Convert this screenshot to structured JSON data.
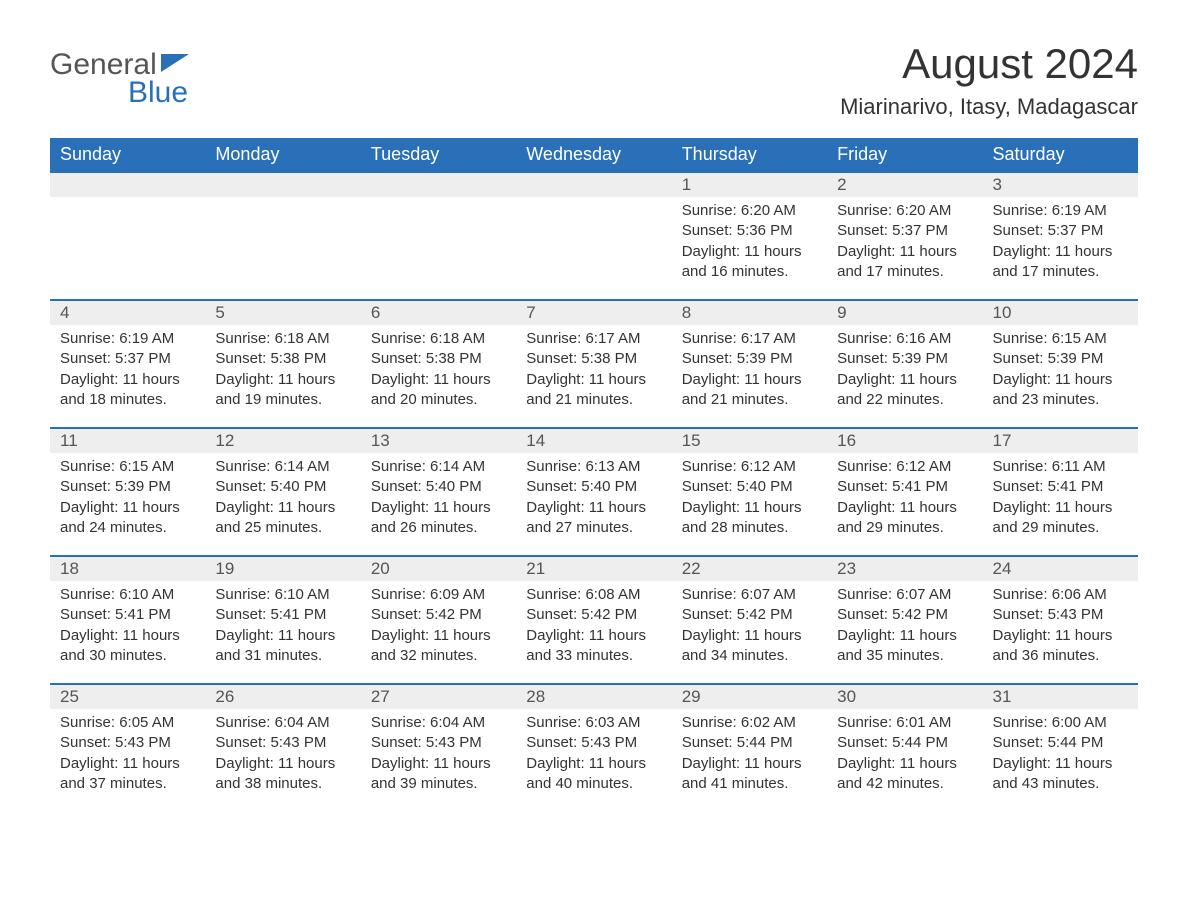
{
  "logo": {
    "text1": "General",
    "text2": "Blue"
  },
  "title": "August 2024",
  "location": "Miarinarivo, Itasy, Madagascar",
  "colors": {
    "header_bg": "#2970b8",
    "header_text": "#ffffff",
    "daynum_bg": "#eeeeee",
    "border": "#2970b8",
    "body_text": "#333333",
    "body_bg": "#ffffff"
  },
  "typography": {
    "title_fontsize": 42,
    "location_fontsize": 22,
    "dayheader_fontsize": 18,
    "daynum_fontsize": 17,
    "details_fontsize": 15,
    "font_family": "Arial"
  },
  "day_headers": [
    "Sunday",
    "Monday",
    "Tuesday",
    "Wednesday",
    "Thursday",
    "Friday",
    "Saturday"
  ],
  "weeks": [
    [
      {
        "empty": true
      },
      {
        "empty": true
      },
      {
        "empty": true
      },
      {
        "empty": true
      },
      {
        "day": "1",
        "sunrise": "Sunrise: 6:20 AM",
        "sunset": "Sunset: 5:36 PM",
        "daylight1": "Daylight: 11 hours",
        "daylight2": "and 16 minutes."
      },
      {
        "day": "2",
        "sunrise": "Sunrise: 6:20 AM",
        "sunset": "Sunset: 5:37 PM",
        "daylight1": "Daylight: 11 hours",
        "daylight2": "and 17 minutes."
      },
      {
        "day": "3",
        "sunrise": "Sunrise: 6:19 AM",
        "sunset": "Sunset: 5:37 PM",
        "daylight1": "Daylight: 11 hours",
        "daylight2": "and 17 minutes."
      }
    ],
    [
      {
        "day": "4",
        "sunrise": "Sunrise: 6:19 AM",
        "sunset": "Sunset: 5:37 PM",
        "daylight1": "Daylight: 11 hours",
        "daylight2": "and 18 minutes."
      },
      {
        "day": "5",
        "sunrise": "Sunrise: 6:18 AM",
        "sunset": "Sunset: 5:38 PM",
        "daylight1": "Daylight: 11 hours",
        "daylight2": "and 19 minutes."
      },
      {
        "day": "6",
        "sunrise": "Sunrise: 6:18 AM",
        "sunset": "Sunset: 5:38 PM",
        "daylight1": "Daylight: 11 hours",
        "daylight2": "and 20 minutes."
      },
      {
        "day": "7",
        "sunrise": "Sunrise: 6:17 AM",
        "sunset": "Sunset: 5:38 PM",
        "daylight1": "Daylight: 11 hours",
        "daylight2": "and 21 minutes."
      },
      {
        "day": "8",
        "sunrise": "Sunrise: 6:17 AM",
        "sunset": "Sunset: 5:39 PM",
        "daylight1": "Daylight: 11 hours",
        "daylight2": "and 21 minutes."
      },
      {
        "day": "9",
        "sunrise": "Sunrise: 6:16 AM",
        "sunset": "Sunset: 5:39 PM",
        "daylight1": "Daylight: 11 hours",
        "daylight2": "and 22 minutes."
      },
      {
        "day": "10",
        "sunrise": "Sunrise: 6:15 AM",
        "sunset": "Sunset: 5:39 PM",
        "daylight1": "Daylight: 11 hours",
        "daylight2": "and 23 minutes."
      }
    ],
    [
      {
        "day": "11",
        "sunrise": "Sunrise: 6:15 AM",
        "sunset": "Sunset: 5:39 PM",
        "daylight1": "Daylight: 11 hours",
        "daylight2": "and 24 minutes."
      },
      {
        "day": "12",
        "sunrise": "Sunrise: 6:14 AM",
        "sunset": "Sunset: 5:40 PM",
        "daylight1": "Daylight: 11 hours",
        "daylight2": "and 25 minutes."
      },
      {
        "day": "13",
        "sunrise": "Sunrise: 6:14 AM",
        "sunset": "Sunset: 5:40 PM",
        "daylight1": "Daylight: 11 hours",
        "daylight2": "and 26 minutes."
      },
      {
        "day": "14",
        "sunrise": "Sunrise: 6:13 AM",
        "sunset": "Sunset: 5:40 PM",
        "daylight1": "Daylight: 11 hours",
        "daylight2": "and 27 minutes."
      },
      {
        "day": "15",
        "sunrise": "Sunrise: 6:12 AM",
        "sunset": "Sunset: 5:40 PM",
        "daylight1": "Daylight: 11 hours",
        "daylight2": "and 28 minutes."
      },
      {
        "day": "16",
        "sunrise": "Sunrise: 6:12 AM",
        "sunset": "Sunset: 5:41 PM",
        "daylight1": "Daylight: 11 hours",
        "daylight2": "and 29 minutes."
      },
      {
        "day": "17",
        "sunrise": "Sunrise: 6:11 AM",
        "sunset": "Sunset: 5:41 PM",
        "daylight1": "Daylight: 11 hours",
        "daylight2": "and 29 minutes."
      }
    ],
    [
      {
        "day": "18",
        "sunrise": "Sunrise: 6:10 AM",
        "sunset": "Sunset: 5:41 PM",
        "daylight1": "Daylight: 11 hours",
        "daylight2": "and 30 minutes."
      },
      {
        "day": "19",
        "sunrise": "Sunrise: 6:10 AM",
        "sunset": "Sunset: 5:41 PM",
        "daylight1": "Daylight: 11 hours",
        "daylight2": "and 31 minutes."
      },
      {
        "day": "20",
        "sunrise": "Sunrise: 6:09 AM",
        "sunset": "Sunset: 5:42 PM",
        "daylight1": "Daylight: 11 hours",
        "daylight2": "and 32 minutes."
      },
      {
        "day": "21",
        "sunrise": "Sunrise: 6:08 AM",
        "sunset": "Sunset: 5:42 PM",
        "daylight1": "Daylight: 11 hours",
        "daylight2": "and 33 minutes."
      },
      {
        "day": "22",
        "sunrise": "Sunrise: 6:07 AM",
        "sunset": "Sunset: 5:42 PM",
        "daylight1": "Daylight: 11 hours",
        "daylight2": "and 34 minutes."
      },
      {
        "day": "23",
        "sunrise": "Sunrise: 6:07 AM",
        "sunset": "Sunset: 5:42 PM",
        "daylight1": "Daylight: 11 hours",
        "daylight2": "and 35 minutes."
      },
      {
        "day": "24",
        "sunrise": "Sunrise: 6:06 AM",
        "sunset": "Sunset: 5:43 PM",
        "daylight1": "Daylight: 11 hours",
        "daylight2": "and 36 minutes."
      }
    ],
    [
      {
        "day": "25",
        "sunrise": "Sunrise: 6:05 AM",
        "sunset": "Sunset: 5:43 PM",
        "daylight1": "Daylight: 11 hours",
        "daylight2": "and 37 minutes."
      },
      {
        "day": "26",
        "sunrise": "Sunrise: 6:04 AM",
        "sunset": "Sunset: 5:43 PM",
        "daylight1": "Daylight: 11 hours",
        "daylight2": "and 38 minutes."
      },
      {
        "day": "27",
        "sunrise": "Sunrise: 6:04 AM",
        "sunset": "Sunset: 5:43 PM",
        "daylight1": "Daylight: 11 hours",
        "daylight2": "and 39 minutes."
      },
      {
        "day": "28",
        "sunrise": "Sunrise: 6:03 AM",
        "sunset": "Sunset: 5:43 PM",
        "daylight1": "Daylight: 11 hours",
        "daylight2": "and 40 minutes."
      },
      {
        "day": "29",
        "sunrise": "Sunrise: 6:02 AM",
        "sunset": "Sunset: 5:44 PM",
        "daylight1": "Daylight: 11 hours",
        "daylight2": "and 41 minutes."
      },
      {
        "day": "30",
        "sunrise": "Sunrise: 6:01 AM",
        "sunset": "Sunset: 5:44 PM",
        "daylight1": "Daylight: 11 hours",
        "daylight2": "and 42 minutes."
      },
      {
        "day": "31",
        "sunrise": "Sunrise: 6:00 AM",
        "sunset": "Sunset: 5:44 PM",
        "daylight1": "Daylight: 11 hours",
        "daylight2": "and 43 minutes."
      }
    ]
  ]
}
